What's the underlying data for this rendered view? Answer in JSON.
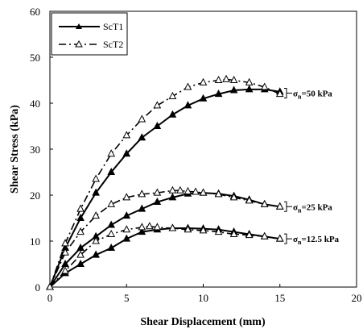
{
  "chart_data": {
    "type": "line",
    "title": "",
    "xlabel": "Shear Displacement (mm)",
    "ylabel": "Shear Stress (kPa)",
    "xlim": [
      0,
      20
    ],
    "ylim": [
      0,
      60
    ],
    "xticks": [
      0,
      5,
      10,
      15,
      20
    ],
    "yticks": [
      0,
      10,
      20,
      30,
      40,
      50,
      60
    ],
    "grid": false,
    "legend_position": "top-left",
    "legend": [
      {
        "name": "ScT1",
        "style": "solid",
        "marker": "filled-triangle"
      },
      {
        "name": "ScT2",
        "style": "dash-dot",
        "marker": "hollow-triangle"
      }
    ],
    "series": [
      {
        "name": "ScT1",
        "condition": "50 kPa",
        "x": [
          0,
          1,
          2,
          3,
          4,
          5,
          6,
          7,
          8,
          9,
          10,
          11,
          12,
          13,
          14,
          15
        ],
        "y": [
          0,
          8.5,
          15,
          20.5,
          25,
          29,
          32.5,
          35,
          37.5,
          39.5,
          41,
          42,
          42.8,
          43,
          43,
          42.5
        ]
      },
      {
        "name": "ScT2",
        "condition": "50 kPa",
        "x": [
          0,
          1,
          2,
          3,
          4,
          5,
          6,
          7,
          8,
          9,
          10,
          11,
          11.5,
          12,
          13,
          14,
          15
        ],
        "y": [
          0,
          9.5,
          17,
          23.5,
          29,
          33,
          36.5,
          39.5,
          41.5,
          43.5,
          44.5,
          45,
          45.2,
          45,
          44.5,
          43.5,
          42
        ]
      },
      {
        "name": "ScT1",
        "condition": "25 kPa",
        "x": [
          0,
          1,
          2,
          3,
          4,
          5,
          6,
          7,
          8,
          9,
          10,
          11,
          12,
          13,
          14,
          15
        ],
        "y": [
          0,
          5,
          8.5,
          11,
          13.5,
          15.5,
          17,
          18.5,
          19.5,
          20.3,
          20.5,
          20.3,
          19.8,
          19,
          18,
          17.5
        ]
      },
      {
        "name": "ScT2",
        "condition": "25 kPa",
        "x": [
          0,
          1,
          2,
          3,
          4,
          5,
          6,
          7,
          8,
          8.5,
          9,
          9.5,
          10,
          11,
          12,
          13,
          14,
          15
        ],
        "y": [
          0,
          7.5,
          12,
          15.5,
          18,
          19.5,
          20.2,
          20.5,
          21,
          21,
          20.8,
          20.7,
          20.5,
          20.2,
          19.5,
          18.8,
          18,
          17.5
        ]
      },
      {
        "name": "ScT1",
        "condition": "12.5 kPa",
        "x": [
          0,
          1,
          2,
          3,
          4,
          5,
          6,
          7,
          8,
          9,
          10,
          11,
          12,
          13,
          14,
          15
        ],
        "y": [
          0,
          3,
          5,
          7,
          8.5,
          10.5,
          12,
          12.5,
          12.8,
          12.8,
          12.7,
          12.5,
          12,
          11.5,
          11,
          10.5
        ]
      },
      {
        "name": "ScT2",
        "condition": "12.5 kPa",
        "x": [
          0,
          1,
          2,
          3,
          4,
          5,
          6,
          6.5,
          7,
          8,
          9,
          10,
          11,
          12,
          13,
          14,
          15
        ],
        "y": [
          0,
          3.5,
          7,
          10,
          11.5,
          12.5,
          13,
          13.2,
          13,
          12.8,
          12.5,
          12.3,
          12,
          11.5,
          11.3,
          11,
          10.5
        ]
      }
    ],
    "annotations": [
      {
        "prefix": "σ",
        "sub": "n",
        "suffix": "=50 kPa",
        "at_y": 42.2
      },
      {
        "prefix": "σ",
        "sub": "n",
        "suffix": "=25 kPa",
        "at_y": 17.5
      },
      {
        "prefix": "σ",
        "sub": "n",
        "suffix": "=12.5 kPa",
        "at_y": 10.5
      }
    ]
  }
}
